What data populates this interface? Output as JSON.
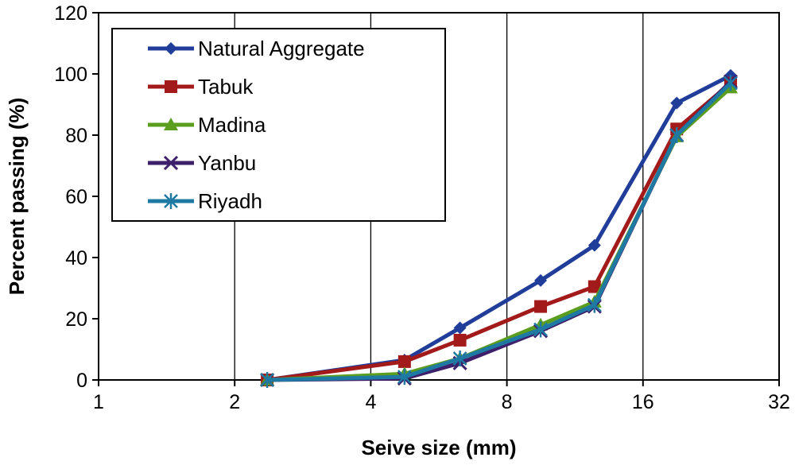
{
  "chart_data": {
    "type": "line",
    "title": "",
    "xlabel": "Seive size (mm)",
    "ylabel": "Percent passing (%)",
    "x_scale": "log2",
    "xlim": [
      1,
      32
    ],
    "ylim": [
      0,
      120
    ],
    "x_ticks": [
      1,
      2,
      4,
      8,
      16,
      32
    ],
    "y_ticks": [
      0,
      20,
      40,
      60,
      80,
      100,
      120
    ],
    "grid": {
      "vertical": true,
      "horizontal": false
    },
    "legend_position": "top-left",
    "x": [
      2.36,
      4.75,
      6.3,
      9.5,
      12.5,
      19,
      25
    ],
    "series": [
      {
        "name": "Natural Aggregate",
        "marker": "diamond",
        "color": "#1f3d99",
        "values": [
          0,
          6.5,
          17,
          32.5,
          44,
          90.5,
          99.5
        ]
      },
      {
        "name": "Tabuk",
        "marker": "square",
        "color": "#a31a1a",
        "values": [
          0,
          6,
          13,
          24,
          30.5,
          82,
          97
        ]
      },
      {
        "name": "Madina",
        "marker": "triangle",
        "color": "#5a9d1f",
        "values": [
          0,
          2,
          7,
          18,
          25.5,
          79.5,
          95.5
        ]
      },
      {
        "name": "Yanbu",
        "marker": "x",
        "color": "#3d1f6b",
        "values": [
          0,
          0.5,
          5.5,
          16,
          24,
          80,
          97.5
        ]
      },
      {
        "name": "Riyadh",
        "marker": "star",
        "color": "#1f7aa3",
        "values": [
          0,
          1,
          7,
          16.5,
          24.5,
          80,
          97
        ]
      }
    ]
  }
}
